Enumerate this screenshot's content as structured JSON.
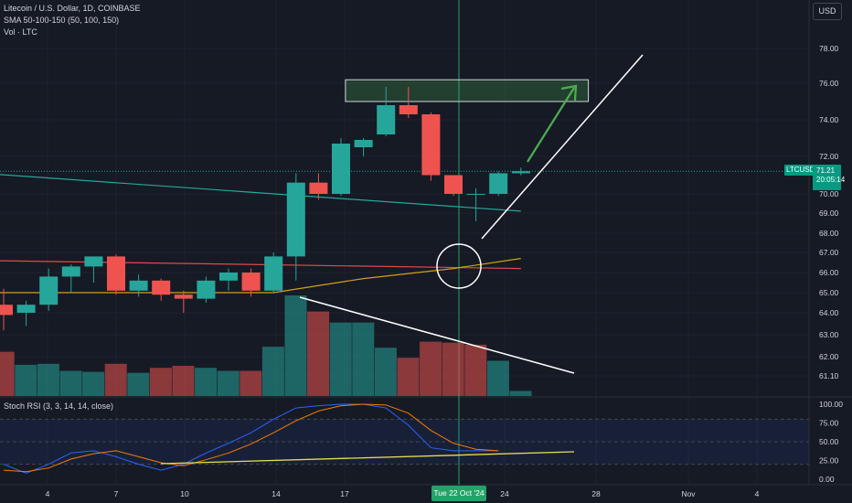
{
  "header": {
    "title": "Litecoin / U.S. Dollar, 1D, COINBASE",
    "sma_label": "SMA 50-100-150 (50, 100, 150)",
    "vol_label": "Vol · LTC",
    "currency_button": "USD"
  },
  "price_tag": {
    "symbol": "LTCUSD",
    "price": "71.21",
    "countdown": "20:05:14"
  },
  "stoch_label": "Stoch RSI (3, 3, 14, 14, close)",
  "crosshair_date": "Tue 22 Oct '24",
  "price_axis_labels": [
    "78.00",
    "76.00",
    "74.00",
    "72.00",
    "70.00",
    "69.00",
    "68.00",
    "67.00",
    "66.00",
    "65.00",
    "64.00",
    "63.00",
    "62.00",
    "61.10"
  ],
  "rsi_axis_labels": [
    "100.00",
    "75.00",
    "50.00",
    "25.00",
    "0.00"
  ],
  "chart_data": [
    {
      "type": "candlestick",
      "title": "Litecoin / U.S. Dollar, 1D, COINBASE",
      "x_tick_labels": [
        "4",
        "7",
        "10",
        "14",
        "17",
        "24",
        "28",
        "Nov",
        "4"
      ],
      "ohlc": [
        {
          "o": 64.4,
          "h": 65.2,
          "l": 63.2,
          "c": 63.9
        },
        {
          "o": 64.0,
          "h": 64.6,
          "l": 63.4,
          "c": 64.4
        },
        {
          "o": 64.4,
          "h": 66.2,
          "l": 64.1,
          "c": 65.8
        },
        {
          "o": 65.8,
          "h": 66.4,
          "l": 65.0,
          "c": 66.3
        },
        {
          "o": 66.3,
          "h": 66.8,
          "l": 65.5,
          "c": 66.8
        },
        {
          "o": 66.8,
          "h": 66.9,
          "l": 64.9,
          "c": 65.1
        },
        {
          "o": 65.1,
          "h": 65.9,
          "l": 64.8,
          "c": 65.6
        },
        {
          "o": 65.6,
          "h": 65.7,
          "l": 64.6,
          "c": 64.9
        },
        {
          "o": 64.9,
          "h": 65.1,
          "l": 64.0,
          "c": 64.7
        },
        {
          "o": 64.7,
          "h": 65.8,
          "l": 64.5,
          "c": 65.6
        },
        {
          "o": 65.6,
          "h": 66.2,
          "l": 65.1,
          "c": 66.0
        },
        {
          "o": 66.0,
          "h": 66.2,
          "l": 64.8,
          "c": 65.1
        },
        {
          "o": 65.1,
          "h": 67.0,
          "l": 65.0,
          "c": 66.8
        },
        {
          "o": 66.8,
          "h": 71.1,
          "l": 65.6,
          "c": 70.6
        },
        {
          "o": 70.6,
          "h": 71.1,
          "l": 69.7,
          "c": 70.0
        },
        {
          "o": 70.0,
          "h": 73.0,
          "l": 69.9,
          "c": 72.7
        },
        {
          "o": 72.5,
          "h": 73.0,
          "l": 72.0,
          "c": 72.9
        },
        {
          "o": 73.2,
          "h": 75.8,
          "l": 73.1,
          "c": 74.8
        },
        {
          "o": 74.8,
          "h": 75.8,
          "l": 74.1,
          "c": 74.3
        },
        {
          "o": 74.3,
          "h": 74.4,
          "l": 70.7,
          "c": 71.0
        },
        {
          "o": 71.0,
          "h": 71.0,
          "l": 69.9,
          "c": 70.0
        },
        {
          "o": 70.0,
          "h": 70.3,
          "l": 68.6,
          "c": 70.0
        },
        {
          "o": 70.0,
          "h": 71.2,
          "l": 69.9,
          "c": 71.1
        },
        {
          "o": 71.1,
          "h": 71.4,
          "l": 71.0,
          "c": 71.21
        }
      ],
      "volume_relative": [
        0.44,
        0.31,
        0.32,
        0.25,
        0.24,
        0.32,
        0.23,
        0.28,
        0.3,
        0.28,
        0.25,
        0.25,
        0.49,
        1.0,
        0.84,
        0.73,
        0.73,
        0.48,
        0.38,
        0.54,
        0.53,
        0.51,
        0.35,
        0.05
      ],
      "volume_up": [
        false,
        true,
        true,
        true,
        true,
        false,
        true,
        false,
        false,
        true,
        true,
        false,
        true,
        true,
        false,
        true,
        true,
        true,
        false,
        false,
        false,
        false,
        true,
        true
      ],
      "sma_series": [
        {
          "name": "SMA 50",
          "color": "#26a69a",
          "x": [
            -1,
            23
          ],
          "y": [
            71.1,
            69.1
          ]
        },
        {
          "name": "SMA 100",
          "color": "#e04a4a",
          "x": [
            -1,
            23
          ],
          "y": [
            66.6,
            66.2
          ]
        },
        {
          "name": "SMA 150",
          "color": "#d4a017",
          "x": [
            -1,
            12,
            16,
            20,
            23
          ],
          "y": [
            65.0,
            65.0,
            65.7,
            66.2,
            66.7
          ]
        }
      ],
      "target_zone": {
        "x": [
          15.2,
          26
        ],
        "y": [
          75.0,
          76.2
        ]
      },
      "ylim": [
        60.5,
        78.6
      ]
    },
    {
      "type": "line",
      "title": "Stoch RSI (3, 3, 14, 14, close)",
      "series": [
        {
          "color": "#2962ff",
          "y": [
            20,
            8,
            20,
            35,
            38,
            30,
            20,
            12,
            20,
            35,
            48,
            62,
            80,
            95,
            98,
            100,
            100,
            95,
            72,
            42,
            38,
            38,
            38
          ]
        },
        {
          "color": "#f57c00",
          "y": [
            12,
            10,
            15,
            27,
            34,
            38,
            30,
            22,
            18,
            26,
            35,
            47,
            62,
            78,
            91,
            98,
            100,
            99,
            88,
            65,
            48,
            40,
            38
          ]
        }
      ],
      "ylim": [
        0,
        100
      ],
      "bands": [
        20,
        50,
        80
      ]
    }
  ]
}
